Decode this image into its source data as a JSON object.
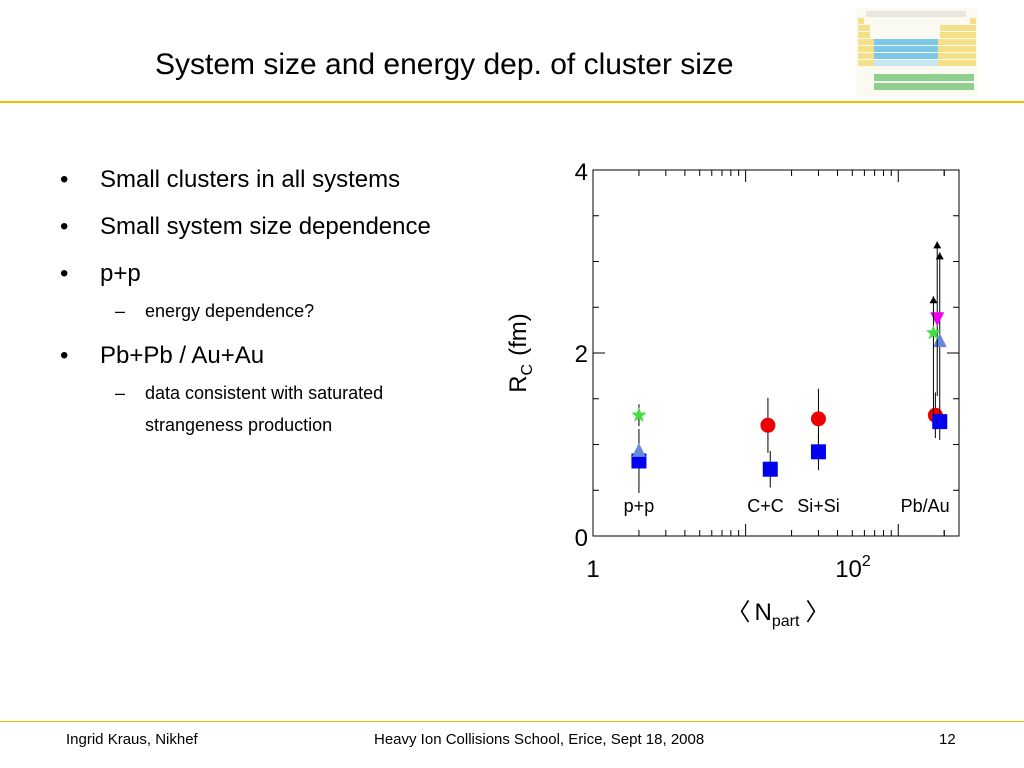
{
  "slide": {
    "title": "System size and energy dep. of cluster size",
    "bullets": [
      {
        "text": "Small clusters in all systems"
      },
      {
        "text": "Small system size dependence"
      },
      {
        "text": "p+p",
        "sub": [
          "energy dependence?"
        ]
      },
      {
        "text": "Pb+Pb / Au+Au",
        "sub": [
          "data consistent with saturated strangeness production"
        ]
      }
    ],
    "bullet_symbol": "•",
    "sub_symbol": "–",
    "sub_line2": "strangeness production",
    "sub_line1": "data consistent with saturated"
  },
  "footer": {
    "author": "Ingrid Kraus, Nikhef",
    "event": "Heavy Ion Collisions School, Erice, Sept 18, 2008",
    "page": "12"
  },
  "colors": {
    "accent_rule": "#f2c200",
    "red": "#ee0000",
    "blue": "#0000ee",
    "green": "#44dd44",
    "light_blue": "#6688dd",
    "magenta": "#ee00ee",
    "black": "#000000"
  },
  "chart_data": {
    "type": "scatter",
    "x_scale": "log",
    "xlim": [
      1,
      250
    ],
    "ylim": [
      0,
      4
    ],
    "xlabel_main": "N",
    "xlabel_sub": "part",
    "xlabel_open": "〈",
    "xlabel_close": "〉",
    "ylabel_main": "R",
    "ylabel_sub": "C",
    "ylabel_unit": "(fm)",
    "y_ticks": [
      "0",
      "2",
      "4"
    ],
    "x_tick_1": "1",
    "x_tick_100_base": "10",
    "x_tick_100_exp": "2",
    "system_labels": [
      {
        "text": "p+p",
        "x": 2
      },
      {
        "text": "C+C",
        "x": 13.5
      },
      {
        "text": "Si+Si",
        "x": 30
      },
      {
        "text": "Pb/Au",
        "x": 150
      }
    ],
    "markers": [
      {
        "shape": "square",
        "color": "blue",
        "x": 2,
        "y": 0.82,
        "err": 0.35
      },
      {
        "shape": "triangle-up",
        "color": "light_blue",
        "x": 2,
        "y": 0.93
      },
      {
        "shape": "star",
        "color": "green",
        "x": 2,
        "y": 1.32,
        "err": 0.12
      },
      {
        "shape": "circle",
        "color": "red",
        "x": 14,
        "y": 1.21,
        "err": 0.3
      },
      {
        "shape": "square",
        "color": "blue",
        "x": 14.5,
        "y": 0.73,
        "err": 0.2
      },
      {
        "shape": "circle",
        "color": "red",
        "x": 30,
        "y": 1.28,
        "err": 0.33
      },
      {
        "shape": "square",
        "color": "blue",
        "x": 30,
        "y": 0.92,
        "err": 0.2
      },
      {
        "shape": "circle",
        "color": "red",
        "x": 175,
        "y": 1.32,
        "err_low": 0.25,
        "err_high": 0.25
      },
      {
        "shape": "square",
        "color": "blue",
        "x": 187,
        "y": 1.25,
        "err_low": 0.2,
        "err_high": 1.95,
        "arrow_top": 3.1
      },
      {
        "shape": "triangle-up",
        "color": "light_blue",
        "x": 187,
        "y": 2.13
      },
      {
        "shape": "triangle-down",
        "color": "magenta",
        "x": 180,
        "y": 2.38,
        "err_low": 0.85,
        "err_high": 0.75,
        "arrow_top": 3.22
      },
      {
        "shape": "star",
        "color": "green",
        "x": 170,
        "y": 2.22,
        "err_low": 0.9,
        "err_high": 0.4,
        "arrow_top": 2.62
      }
    ]
  }
}
